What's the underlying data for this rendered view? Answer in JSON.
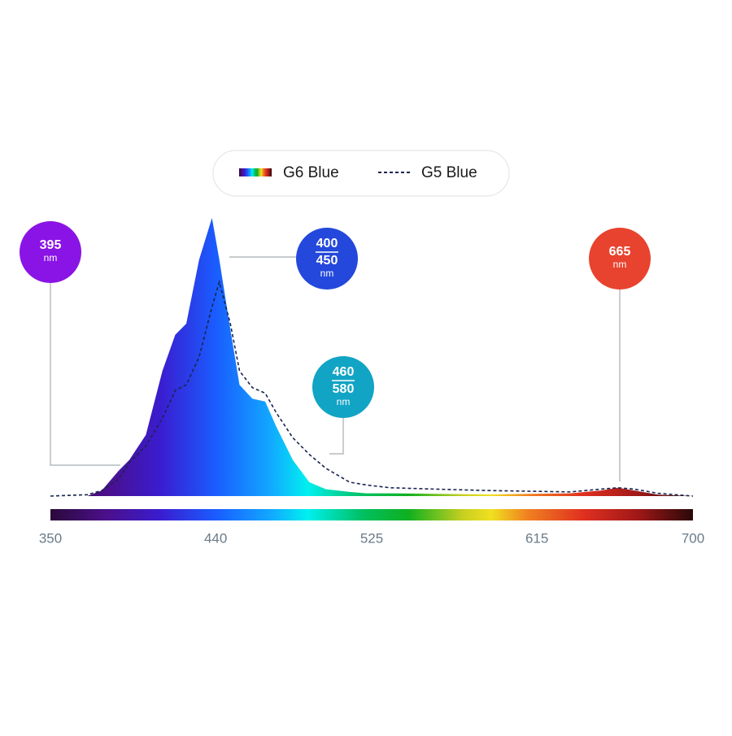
{
  "chart_data": {
    "type": "area",
    "x": [
      350,
      370,
      378,
      387,
      393,
      402,
      411,
      418,
      424,
      431,
      438,
      442,
      448,
      453,
      460,
      467,
      473,
      482,
      491,
      500,
      513,
      522,
      535,
      560,
      588,
      633,
      650,
      659,
      668,
      681,
      700
    ],
    "series": [
      {
        "name": "G6 Blue",
        "values": [
          0,
          0,
          2,
          9,
          13,
          22,
          45,
          58,
          62,
          85,
          100,
          85,
          60,
          40,
          35,
          34,
          25,
          13,
          5,
          2.5,
          1.5,
          1,
          1,
          0.8,
          0.6,
          1,
          2,
          3,
          2,
          0.5,
          0
        ]
      },
      {
        "name": "G5 Blue",
        "color": "#1a2550",
        "dashed": true,
        "values": [
          0,
          0.5,
          2,
          6,
          12,
          18,
          28,
          38,
          40,
          50,
          68,
          77,
          62,
          45,
          39,
          37,
          30,
          21,
          15,
          10,
          5,
          4,
          3,
          2.5,
          2,
          1.5,
          2.5,
          3,
          2.5,
          1,
          0
        ]
      }
    ],
    "xlim": [
      350,
      700
    ],
    "xticks": [
      350,
      440,
      525,
      615,
      700
    ],
    "ylim": [
      0,
      100
    ],
    "annotations": [
      {
        "lines": [
          "395"
        ],
        "unit": "nm",
        "color": "#8a14e6"
      },
      {
        "lines": [
          "400",
          "450"
        ],
        "unit": "nm",
        "color": "#2448dc"
      },
      {
        "lines": [
          "460",
          "580"
        ],
        "unit": "nm",
        "color": "#12a4c4"
      },
      {
        "lines": [
          "665"
        ],
        "unit": "nm",
        "color": "#e8432f"
      }
    ]
  }
}
